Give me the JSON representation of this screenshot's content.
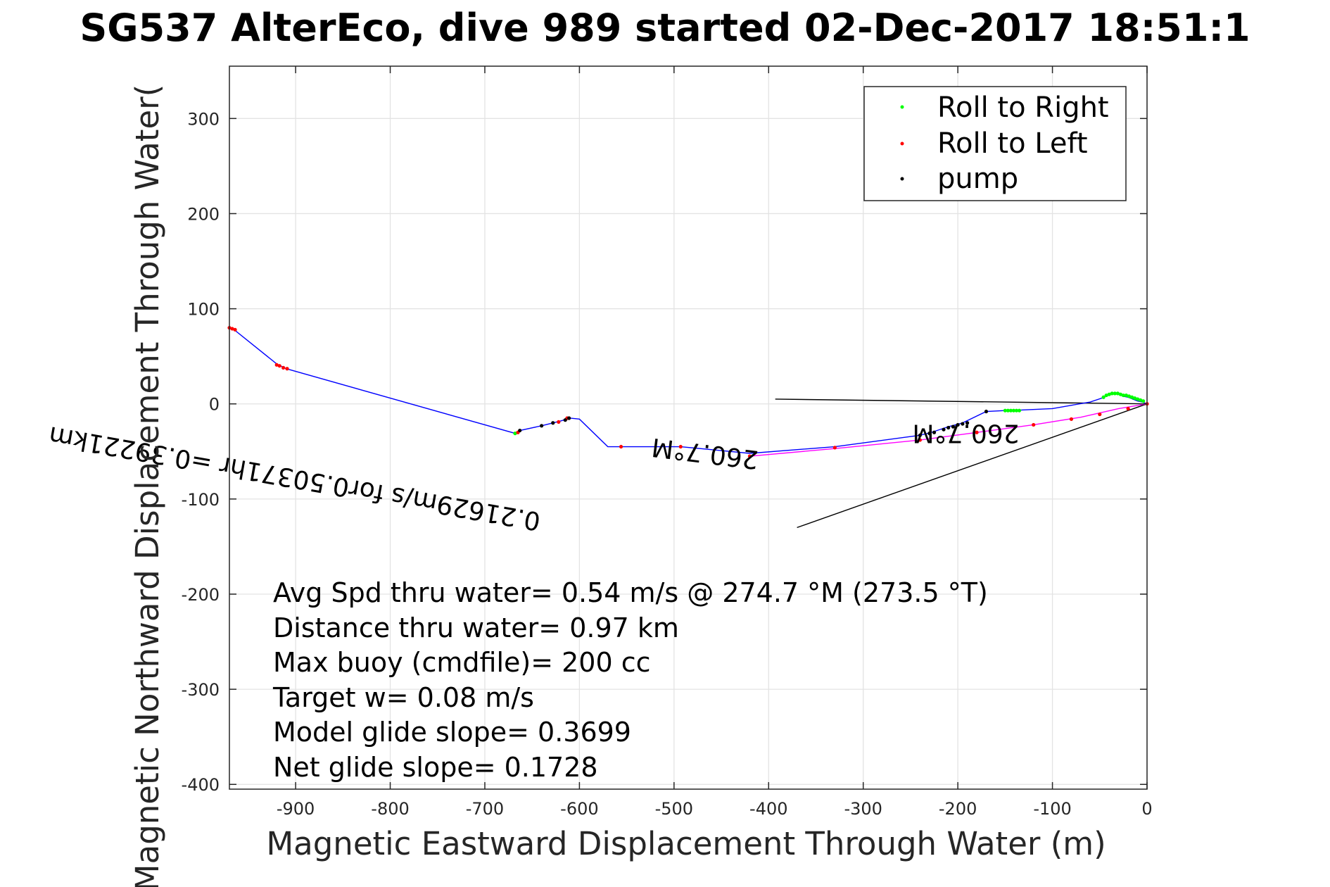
{
  "chart_data": {
    "type": "line",
    "title": "SG537 AlterEco, dive 989 started 02-Dec-2017 18:51:1",
    "xlabel": "Magnetic Eastward Displacement Through Water (m)",
    "ylabel": "Magnetic Northward Displacement Through Water(",
    "xlim": [
      -970,
      0
    ],
    "ylim": [
      -405,
      355
    ],
    "xticks": [
      -900,
      -800,
      -700,
      -600,
      -500,
      -400,
      -300,
      -200,
      -100,
      0
    ],
    "yticks": [
      -400,
      -300,
      -200,
      -100,
      0,
      100,
      200,
      300
    ],
    "grid": true,
    "legend_placement": "top-right",
    "track": {
      "color": "#0000ff",
      "x": [
        -970,
        -965,
        -920,
        -910,
        -668,
        -663,
        -640,
        -620,
        -610,
        -600,
        -570,
        -556,
        -493,
        -420,
        -330,
        -240,
        -228,
        -210,
        -195,
        -170,
        -150,
        -145,
        -100,
        -60,
        -48,
        -40,
        -35,
        -30,
        -25,
        -20,
        -15,
        -10,
        -5,
        0
      ],
      "y": [
        80,
        78,
        42,
        37,
        -31,
        -28,
        -23,
        -18,
        -15,
        -16,
        -45,
        -45,
        -45,
        -52,
        -45,
        -33,
        -30,
        -24,
        -20,
        -8,
        -7,
        -7,
        -5,
        2,
        6,
        10,
        11,
        10,
        8,
        7,
        5,
        3,
        2,
        0
      ]
    },
    "track2": {
      "color": "#ff00ff",
      "x": [
        -420,
        -330,
        -240,
        -180,
        -120,
        -70,
        -30,
        0
      ],
      "y": [
        -55,
        -47,
        -38,
        -30,
        -22,
        -14,
        -5,
        0
      ]
    },
    "series": [
      {
        "name": "Roll to Right",
        "color": "#00ff00",
        "x": [
          -668,
          -150,
          -147,
          -144,
          -141,
          -138,
          -135,
          -46,
          -43,
          -40,
          -37,
          -34,
          -31,
          -28,
          -25,
          -22,
          -19,
          -16,
          -13,
          -10,
          -7,
          -4
        ],
        "y": [
          -31,
          -7,
          -7,
          -7,
          -7,
          -7,
          -7,
          7,
          9,
          10,
          11,
          11,
          11,
          10,
          9,
          9,
          8,
          7,
          6,
          5,
          4,
          3
        ]
      },
      {
        "name": "Roll to Left",
        "color": "#ff0000",
        "x": [
          -970,
          -967,
          -964,
          -920,
          -917,
          -913,
          -909,
          -665,
          -622,
          -613,
          -556,
          -493,
          -420,
          -330,
          -240,
          -180,
          -120,
          -80,
          -50,
          -20,
          0
        ],
        "y": [
          80,
          79,
          78,
          41,
          40,
          38,
          37,
          -30,
          -19,
          -15,
          -45,
          -45,
          -55,
          -46,
          -38,
          -30,
          -22,
          -16,
          -11,
          -5,
          0
        ]
      },
      {
        "name": "pump",
        "color": "#000000",
        "x": [
          -663,
          -640,
          -628,
          -615,
          -611,
          -240,
          -230,
          -225,
          -215,
          -210,
          -205,
          -200,
          -195,
          -190,
          -170
        ],
        "y": [
          -28,
          -23,
          -20,
          -17,
          -15,
          -33,
          -31,
          -30,
          -27,
          -25,
          -24,
          -22,
          -21,
          -20,
          -8
        ]
      }
    ],
    "reference_lines": [
      {
        "x": [
          -393,
          0
        ],
        "y": [
          5,
          0
        ]
      },
      {
        "x": [
          -370,
          0
        ],
        "y": [
          -130,
          0
        ]
      }
    ],
    "annotations": [
      {
        "text": "0.21629m/s for0.50371hr =0.39221km",
        "x": -640,
        "y": -115,
        "rotation": 190
      },
      {
        "text": "260.7°M",
        "x": -410,
        "y": -50,
        "rotation": 187
      },
      {
        "text": "260.7°M",
        "x": -135,
        "y": -22,
        "rotation": 180
      }
    ],
    "stats": [
      "Avg Spd thru water=  0.54 m/s @ 274.7 °M (273.5 °T)",
      "Distance thru water=  0.97 km",
      "Max buoy (cmdfile)= 200 cc",
      "Target w= 0.08 m/s",
      "Model glide slope= 0.3699",
      "Net glide slope= 0.1728"
    ]
  }
}
